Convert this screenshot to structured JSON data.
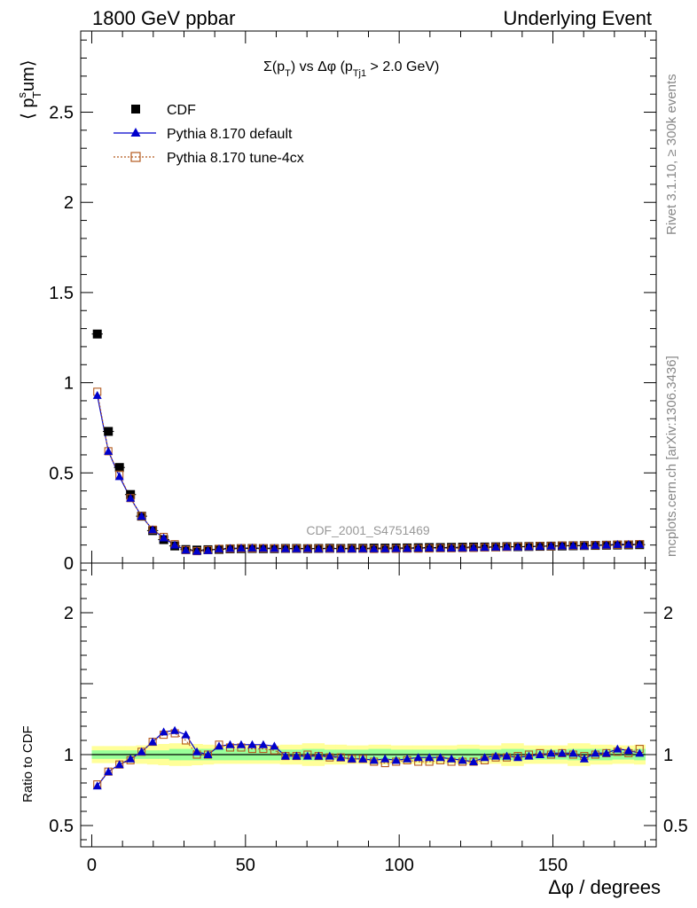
{
  "header": {
    "left": "1800 GeV ppbar",
    "right": "Underlying Event"
  },
  "side_labels": {
    "rivet": "Rivet 3.1.10, ≥ 300k events",
    "mcplots": "mcplots.cern.ch [arXiv:1306.3436]"
  },
  "colors": {
    "data": "#000000",
    "default": "#0000cc",
    "tune": "#b35a1f",
    "band_inner": "#99ff99",
    "band_outer": "#ffff99"
  },
  "chart_data": [
    {
      "type": "scatter",
      "title_parts": {
        "sigma": "Σ(p",
        "sub_t": "T",
        "mid": ") vs Δφ (p",
        "sub_tj1": "Tj1",
        "end": " > 2.0 GeV)"
      },
      "ylabel_parts": {
        "open": "⟨ p",
        "sup": "s",
        "sub": "T",
        "close": "um⟩"
      },
      "watermark": "CDF_2001_S4751469",
      "xlim": [
        -3.6,
        183.6
      ],
      "ylim": [
        0,
        2.95
      ],
      "yticks": [
        {
          "v": 0,
          "label": "0"
        },
        {
          "v": 0.5,
          "label": "0.5"
        },
        {
          "v": 1,
          "label": "1"
        },
        {
          "v": 1.5,
          "label": "1.5"
        },
        {
          "v": 2,
          "label": "2"
        },
        {
          "v": 2.5,
          "label": "2.5"
        }
      ],
      "x": [
        1.8,
        5.4,
        9.0,
        12.6,
        16.2,
        19.8,
        23.4,
        27.0,
        30.6,
        34.2,
        37.8,
        41.4,
        45.0,
        48.6,
        52.2,
        55.8,
        59.4,
        63.0,
        66.6,
        70.2,
        73.8,
        77.4,
        81.0,
        84.6,
        88.2,
        91.8,
        95.4,
        99.0,
        102.6,
        106.2,
        109.8,
        113.4,
        117.0,
        120.6,
        124.2,
        127.8,
        131.4,
        135.0,
        138.6,
        142.2,
        145.8,
        149.4,
        153.0,
        156.6,
        160.2,
        163.8,
        167.4,
        171.0,
        174.6,
        178.2
      ],
      "series": [
        {
          "name": "CDF",
          "marker": "filled-square",
          "values": [
            1.27,
            0.73,
            0.53,
            0.38,
            0.26,
            0.18,
            0.13,
            0.095,
            0.075,
            0.072,
            0.074,
            0.076,
            0.079,
            0.08,
            0.081,
            0.08,
            0.08,
            0.081,
            0.081,
            0.08,
            0.081,
            0.082,
            0.081,
            0.082,
            0.082,
            0.083,
            0.083,
            0.084,
            0.084,
            0.085,
            0.086,
            0.086,
            0.087,
            0.088,
            0.089,
            0.089,
            0.09,
            0.091,
            0.091,
            0.092,
            0.093,
            0.094,
            0.095,
            0.096,
            0.097,
            0.098,
            0.099,
            0.1,
            0.101,
            0.102
          ],
          "yerr": [
            0.02,
            0.015,
            0.012,
            0.01,
            0.008,
            0.007,
            0.006,
            0.005,
            0.004,
            0.004,
            0.004,
            0.004,
            0.004,
            0.004,
            0.004,
            0.004,
            0.004,
            0.004,
            0.004,
            0.004,
            0.004,
            0.004,
            0.004,
            0.004,
            0.004,
            0.004,
            0.004,
            0.004,
            0.004,
            0.004,
            0.004,
            0.004,
            0.004,
            0.004,
            0.004,
            0.004,
            0.004,
            0.004,
            0.004,
            0.004,
            0.004,
            0.004,
            0.004,
            0.004,
            0.004,
            0.004,
            0.004,
            0.004,
            0.004,
            0.004
          ]
        },
        {
          "name": "Pythia 8.170 default",
          "marker": "triangle",
          "line": "solid",
          "values": [
            0.93,
            0.62,
            0.48,
            0.36,
            0.26,
            0.185,
            0.14,
            0.1,
            0.072,
            0.066,
            0.07,
            0.079,
            0.082,
            0.083,
            0.084,
            0.083,
            0.082,
            0.08,
            0.08,
            0.081,
            0.08,
            0.081,
            0.08,
            0.079,
            0.08,
            0.08,
            0.08,
            0.081,
            0.082,
            0.083,
            0.084,
            0.084,
            0.084,
            0.085,
            0.086,
            0.087,
            0.089,
            0.09,
            0.09,
            0.091,
            0.093,
            0.095,
            0.096,
            0.097,
            0.096,
            0.099,
            0.1,
            0.104,
            0.104,
            0.104
          ]
        },
        {
          "name": "Pythia 8.170 tune-4cx",
          "marker": "open-square",
          "line": "dotted",
          "values": [
            0.95,
            0.62,
            0.49,
            0.36,
            0.26,
            0.185,
            0.145,
            0.105,
            0.072,
            0.066,
            0.072,
            0.079,
            0.08,
            0.082,
            0.082,
            0.082,
            0.081,
            0.08,
            0.08,
            0.08,
            0.08,
            0.08,
            0.079,
            0.079,
            0.079,
            0.078,
            0.078,
            0.079,
            0.08,
            0.08,
            0.081,
            0.082,
            0.082,
            0.083,
            0.084,
            0.086,
            0.088,
            0.089,
            0.091,
            0.092,
            0.094,
            0.094,
            0.097,
            0.097,
            0.097,
            0.099,
            0.1,
            0.102,
            0.103,
            0.105
          ]
        }
      ]
    },
    {
      "type": "line",
      "ylabel": "Ratio to CDF",
      "xlabel_parts": {
        "main": "Δφ / degrees"
      },
      "xlim": [
        -3.6,
        183.6
      ],
      "ylim": [
        0.35,
        2.35
      ],
      "xticks": [
        {
          "v": 0,
          "label": "0"
        },
        {
          "v": 50,
          "label": "50"
        },
        {
          "v": 100,
          "label": "100"
        },
        {
          "v": 150,
          "label": "150"
        }
      ],
      "yticks_left": [
        {
          "v": 0.5,
          "label": "0.5"
        },
        {
          "v": 1,
          "label": "1"
        },
        {
          "v": 2,
          "label": "2"
        }
      ],
      "yticks_right": [
        {
          "v": 0.5,
          "label": "0.5"
        },
        {
          "v": 1,
          "label": "1"
        },
        {
          "v": 2,
          "label": "2"
        }
      ],
      "band_inner": [
        0.03,
        0.03,
        0.03,
        0.03,
        0.03,
        0.03,
        0.03,
        0.04,
        0.04,
        0.04,
        0.04,
        0.04,
        0.04,
        0.04,
        0.04,
        0.04,
        0.04,
        0.035,
        0.035,
        0.04,
        0.04,
        0.035,
        0.035,
        0.035,
        0.035,
        0.04,
        0.04,
        0.035,
        0.035,
        0.035,
        0.035,
        0.035,
        0.035,
        0.04,
        0.04,
        0.035,
        0.035,
        0.04,
        0.04,
        0.035,
        0.035,
        0.035,
        0.035,
        0.04,
        0.04,
        0.04,
        0.04,
        0.035,
        0.035,
        0.04
      ],
      "band_outer": [
        0.06,
        0.06,
        0.06,
        0.06,
        0.065,
        0.07,
        0.075,
        0.08,
        0.08,
        0.075,
        0.07,
        0.065,
        0.065,
        0.065,
        0.065,
        0.065,
        0.065,
        0.07,
        0.07,
        0.08,
        0.08,
        0.07,
        0.07,
        0.065,
        0.065,
        0.07,
        0.07,
        0.065,
        0.065,
        0.065,
        0.065,
        0.065,
        0.065,
        0.07,
        0.07,
        0.065,
        0.065,
        0.08,
        0.08,
        0.065,
        0.065,
        0.065,
        0.065,
        0.08,
        0.08,
        0.07,
        0.07,
        0.065,
        0.065,
        0.07
      ],
      "series": [
        {
          "name": "Pythia 8.170 default",
          "values": [
            0.78,
            0.88,
            0.93,
            0.97,
            1.02,
            1.09,
            1.16,
            1.17,
            1.14,
            1.02,
            1.0,
            1.06,
            1.07,
            1.07,
            1.07,
            1.07,
            1.06,
            0.99,
            0.99,
            0.99,
            0.99,
            0.99,
            0.98,
            0.97,
            0.97,
            0.96,
            0.97,
            0.96,
            0.97,
            0.98,
            0.98,
            0.98,
            0.97,
            0.96,
            0.95,
            0.98,
            0.99,
            0.99,
            0.98,
            0.99,
            1.0,
            1.01,
            1.01,
            1.01,
            0.97,
            1.01,
            1.01,
            1.04,
            1.03,
            1.01
          ]
        },
        {
          "name": "Pythia 8.170 tune-4cx",
          "values": [
            0.79,
            0.88,
            0.93,
            0.96,
            1.02,
            1.09,
            1.14,
            1.15,
            1.1,
            1.0,
            1.0,
            1.07,
            1.05,
            1.05,
            1.04,
            1.04,
            1.03,
            0.99,
            0.99,
            1.0,
            0.99,
            0.98,
            0.98,
            0.97,
            0.97,
            0.95,
            0.94,
            0.95,
            0.96,
            0.95,
            0.95,
            0.96,
            0.95,
            0.95,
            0.95,
            0.96,
            0.98,
            0.98,
            0.99,
            1.0,
            1.01,
            1.0,
            1.01,
            1.0,
            0.99,
            1.0,
            1.01,
            1.02,
            1.01,
            1.04
          ]
        }
      ]
    }
  ]
}
